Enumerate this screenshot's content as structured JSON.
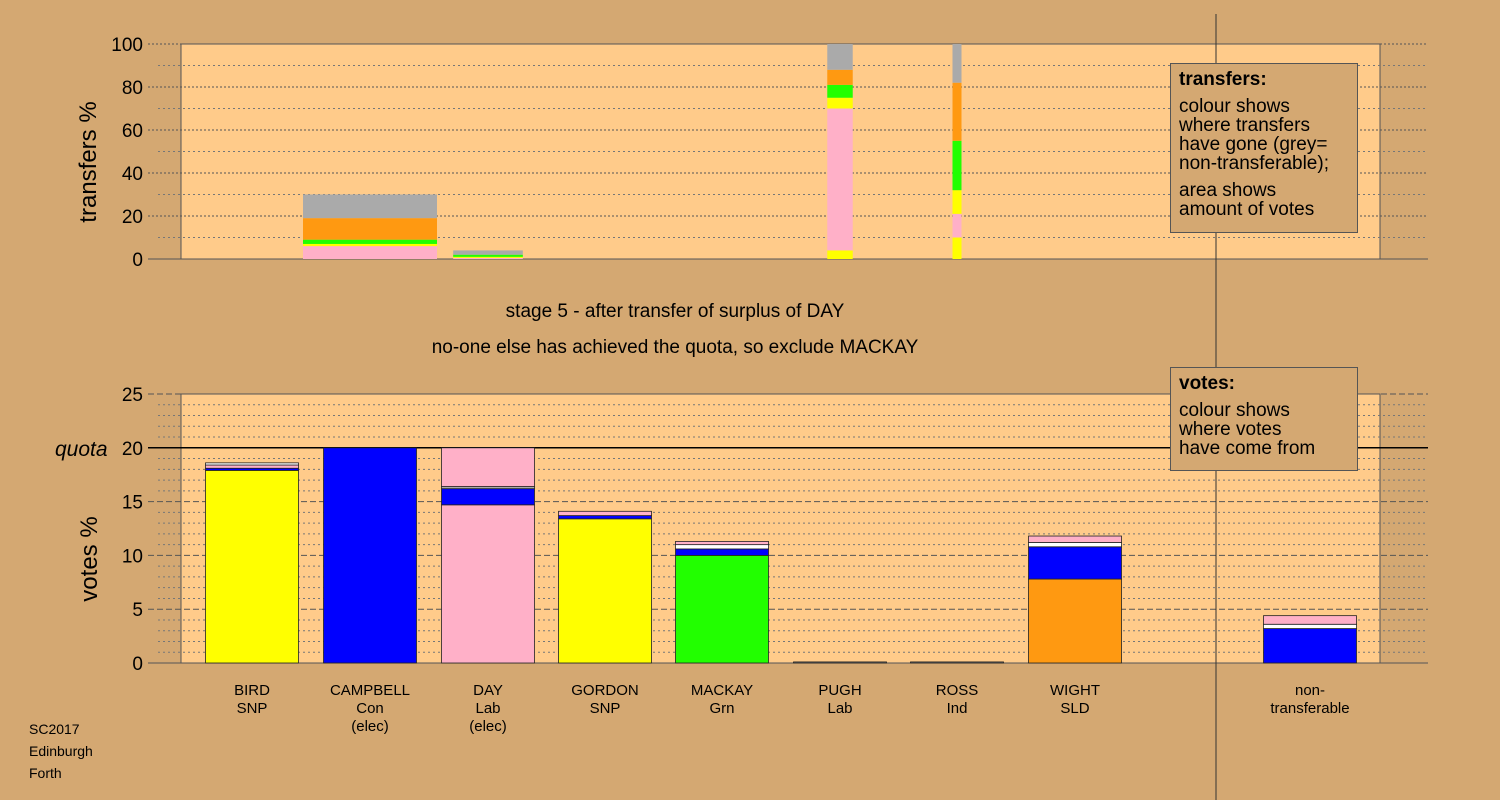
{
  "chart_data": [
    {
      "type": "bar",
      "stacked": true,
      "ylabel": "transfers %",
      "ylim": [
        0,
        100
      ],
      "yticks": [
        0,
        20,
        40,
        60,
        80,
        100
      ],
      "categories": [
        "BIRD",
        "CAMPBELL",
        "DAY",
        "GORDON",
        "MACKAY",
        "PUGH",
        "ROSS",
        "WIGHT"
      ],
      "bar_widths_relative": [
        0,
        1.0,
        0.52,
        0,
        0,
        0.19,
        0.06,
        0
      ],
      "stack_order": [
        "yellow",
        "pink",
        "green",
        "orange",
        "grey"
      ],
      "series": [
        {
          "name": "yellow",
          "color": "#ffff00",
          "values": [
            0,
            0,
            0,
            0,
            0,
            4,
            10,
            0
          ]
        },
        {
          "name": "pink",
          "color": "#ffb0c8",
          "values": [
            0,
            6,
            0.5,
            0,
            0,
            66,
            11,
            0
          ]
        },
        {
          "name": "yellow-2",
          "color": "#ffff00",
          "values": [
            0,
            1,
            0.5,
            0,
            0,
            5,
            11,
            0
          ]
        },
        {
          "name": "green",
          "color": "#22ff00",
          "values": [
            0,
            2,
            1,
            0,
            0,
            6,
            23,
            0
          ]
        },
        {
          "name": "orange",
          "color": "#ff9911",
          "values": [
            0,
            10,
            0,
            0,
            0,
            7,
            27,
            0
          ]
        },
        {
          "name": "grey",
          "color": "#aaaaaa",
          "values": [
            0,
            11,
            2,
            0,
            0,
            12,
            18,
            0
          ]
        }
      ],
      "grid": true,
      "legend": "top-right"
    },
    {
      "type": "bar",
      "stacked": true,
      "ylabel": "votes %",
      "ylim": [
        0,
        25
      ],
      "yticks": [
        0,
        5,
        10,
        15,
        20,
        25
      ],
      "quota": 20,
      "categories": [
        "BIRD",
        "CAMPBELL",
        "DAY",
        "GORDON",
        "MACKAY",
        "PUGH",
        "ROSS",
        "WIGHT",
        "non-transferable"
      ],
      "segments": [
        [
          [
            "#ffff00",
            17.9
          ],
          [
            "#0000ff",
            0.2
          ],
          [
            "#ffb0c8",
            0.3
          ],
          [
            "#ffffff",
            0.2
          ]
        ],
        [
          [
            "#0000ff",
            20.0
          ]
        ],
        [
          [
            "#ffb0c8",
            14.7
          ],
          [
            "#0000ff",
            1.5
          ],
          [
            "#aaaaaa",
            0.2
          ],
          [
            "#ffb0c8",
            3.6
          ]
        ],
        [
          [
            "#ffff00",
            13.4
          ],
          [
            "#0000ff",
            0.3
          ],
          [
            "#ffb0c8",
            0.4
          ]
        ],
        [
          [
            "#22ff00",
            10.0
          ],
          [
            "#0000ff",
            0.6
          ],
          [
            "#ffffff",
            0.4
          ],
          [
            "#ffb0c8",
            0.3
          ]
        ],
        [
          [
            "#888888",
            0.1
          ]
        ],
        [
          [
            "#888888",
            0.1
          ]
        ],
        [
          [
            "#ff9911",
            7.8
          ],
          [
            "#0000ff",
            3.0
          ],
          [
            "#ffffff",
            0.4
          ],
          [
            "#ffb0c8",
            0.6
          ]
        ],
        [
          [
            "#0000ff",
            3.2
          ],
          [
            "#ffffff",
            0.4
          ],
          [
            "#ffb0c8",
            0.8
          ]
        ]
      ],
      "grid": true,
      "legend": "top-right"
    }
  ],
  "top_legend": {
    "title": "transfers:",
    "lines1": [
      "colour shows",
      "where transfers",
      "have gone (grey=",
      "non-transferable);"
    ],
    "lines2": [
      "area shows",
      "amount of votes"
    ]
  },
  "bottom_legend": {
    "title": "votes:",
    "lines": [
      "colour shows",
      "where votes",
      "have come from"
    ]
  },
  "caption": {
    "line1": "stage 5 - after transfer of surplus of DAY",
    "line2": "no-one else has achieved the quota, so exclude MACKAY"
  },
  "quota_label": "quota",
  "top_ylabel": "transfers %",
  "bottom_ylabel": "votes %",
  "candidates": [
    {
      "name": "BIRD",
      "party": "SNP",
      "status": ""
    },
    {
      "name": "CAMPBELL",
      "party": "Con",
      "status": "(elec)"
    },
    {
      "name": "DAY",
      "party": "Lab",
      "status": "(elec)"
    },
    {
      "name": "GORDON",
      "party": "SNP",
      "status": ""
    },
    {
      "name": "MACKAY",
      "party": "Grn",
      "status": ""
    },
    {
      "name": "PUGH",
      "party": "Lab",
      "status": ""
    },
    {
      "name": "ROSS",
      "party": "Ind",
      "status": ""
    },
    {
      "name": "WIGHT",
      "party": "SLD",
      "status": ""
    },
    {
      "name": "non-",
      "party": "transferable",
      "status": ""
    }
  ],
  "footer": [
    "SC2017",
    "Edinburgh",
    "Forth"
  ]
}
